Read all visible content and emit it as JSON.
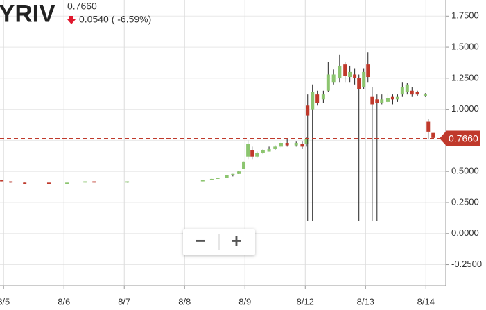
{
  "chart_data": {
    "type": "candlestick",
    "symbol": "YRIV",
    "price": "0.7660",
    "change": "0.0540 ( -6.59%)",
    "controls": [
      "−",
      "+"
    ],
    "up_color": "#8cc56f",
    "down_color": "#c0392b",
    "last_price": {
      "value": 0.766,
      "label": "0.7660"
    },
    "xlim": [
      -0.06,
      7.33
    ],
    "ylim": [
      -0.42,
      1.88
    ],
    "grid": true,
    "xticks": [
      {
        "value": 0,
        "label": "8/5"
      },
      {
        "value": 1,
        "label": "8/6"
      },
      {
        "value": 2,
        "label": "8/7"
      },
      {
        "value": 3,
        "label": "8/8"
      },
      {
        "value": 4,
        "label": "8/9"
      },
      {
        "value": 5,
        "label": "8/12"
      },
      {
        "value": 6,
        "label": "8/13"
      },
      {
        "value": 7,
        "label": "8/14"
      }
    ],
    "yticks": [
      {
        "value": 1.75,
        "label": "1.7500"
      },
      {
        "value": 1.5,
        "label": "1.5000"
      },
      {
        "value": 1.25,
        "label": "1.2500"
      },
      {
        "value": 1,
        "label": "1.0000"
      },
      {
        "value": 0.75,
        "label": "0.7500"
      },
      {
        "value": 0.5,
        "label": "0.5000"
      },
      {
        "value": 0.25,
        "label": "0.2500"
      },
      {
        "value": 0,
        "label": "0.0000"
      },
      {
        "value": -0.25,
        "label": "-0.2500"
      }
    ],
    "x": [
      -0.03,
      0.12,
      0.35,
      0.75,
      1.05,
      1.35,
      1.5,
      2.05,
      3.3,
      3.45,
      3.55,
      3.7,
      3.8,
      3.9,
      3.98,
      4.05,
      4.12,
      4.2,
      4.3,
      4.4,
      4.5,
      4.6,
      4.7,
      4.85,
      4.95,
      5.02,
      5.04,
      5.12,
      5.2,
      5.3,
      5.38,
      5.47,
      5.57,
      5.66,
      5.74,
      5.82,
      5.89,
      5.97,
      6.04,
      6.11,
      6.19,
      6.27,
      6.37,
      6.45,
      6.53,
      6.61,
      6.69,
      6.77,
      6.86,
      6.99,
      7.04,
      7.12
    ],
    "open": [
      0.43,
      0.42,
      0.41,
      0.41,
      0.4,
      0.41,
      0.42,
      0.41,
      0.42,
      0.43,
      0.44,
      0.45,
      0.47,
      0.48,
      0.52,
      0.62,
      0.67,
      0.62,
      0.65,
      0.66,
      0.68,
      0.7,
      0.73,
      0.71,
      0.72,
      0.72,
      1.03,
      1.0,
      1.12,
      1.08,
      1.15,
      1.22,
      1.25,
      1.36,
      1.26,
      1.28,
      1.25,
      1.18,
      1.36,
      1.1,
      1.08,
      1.05,
      1.06,
      1.1,
      1.08,
      1.12,
      1.14,
      1.15,
      1.14,
      1.11,
      0.9,
      0.81
    ],
    "high": [
      0.43,
      0.42,
      0.41,
      0.41,
      0.41,
      0.42,
      0.42,
      0.42,
      0.43,
      0.44,
      0.45,
      0.47,
      0.48,
      0.5,
      0.58,
      0.75,
      0.7,
      0.66,
      0.68,
      0.7,
      0.71,
      0.74,
      0.76,
      0.74,
      0.74,
      0.78,
      1.12,
      1.2,
      1.15,
      1.15,
      1.38,
      1.32,
      1.44,
      1.38,
      1.35,
      1.33,
      1.28,
      1.33,
      1.46,
      1.18,
      1.12,
      1.12,
      1.13,
      1.12,
      1.12,
      1.22,
      1.21,
      1.18,
      1.15,
      1.13,
      0.92,
      0.81
    ],
    "low": [
      0.42,
      0.41,
      0.4,
      0.4,
      0.4,
      0.41,
      0.41,
      0.41,
      0.42,
      0.43,
      0.44,
      0.45,
      0.46,
      0.48,
      0.52,
      0.6,
      0.6,
      0.61,
      0.64,
      0.66,
      0.67,
      0.69,
      0.7,
      0.7,
      0.68,
      0.7,
      0.1,
      0.1,
      1.03,
      1.05,
      1.14,
      1.2,
      1.22,
      1.22,
      1.22,
      1.2,
      0.1,
      1.16,
      1.22,
      0.1,
      0.1,
      1.04,
      1.05,
      1.04,
      1.06,
      1.1,
      1.12,
      1.1,
      1.11,
      1.1,
      0.76,
      0.76
    ],
    "close": [
      0.42,
      0.41,
      0.4,
      0.4,
      0.41,
      0.42,
      0.41,
      0.42,
      0.43,
      0.44,
      0.45,
      0.47,
      0.48,
      0.5,
      0.58,
      0.72,
      0.62,
      0.65,
      0.67,
      0.68,
      0.7,
      0.73,
      0.71,
      0.73,
      0.7,
      0.76,
      0.95,
      1.14,
      1.05,
      1.12,
      1.28,
      1.28,
      1.35,
      1.27,
      1.3,
      1.25,
      1.16,
      1.3,
      1.26,
      1.04,
      1.05,
      1.08,
      1.09,
      1.08,
      1.1,
      1.18,
      1.2,
      1.12,
      1.12,
      1.12,
      0.82,
      0.77
    ]
  }
}
